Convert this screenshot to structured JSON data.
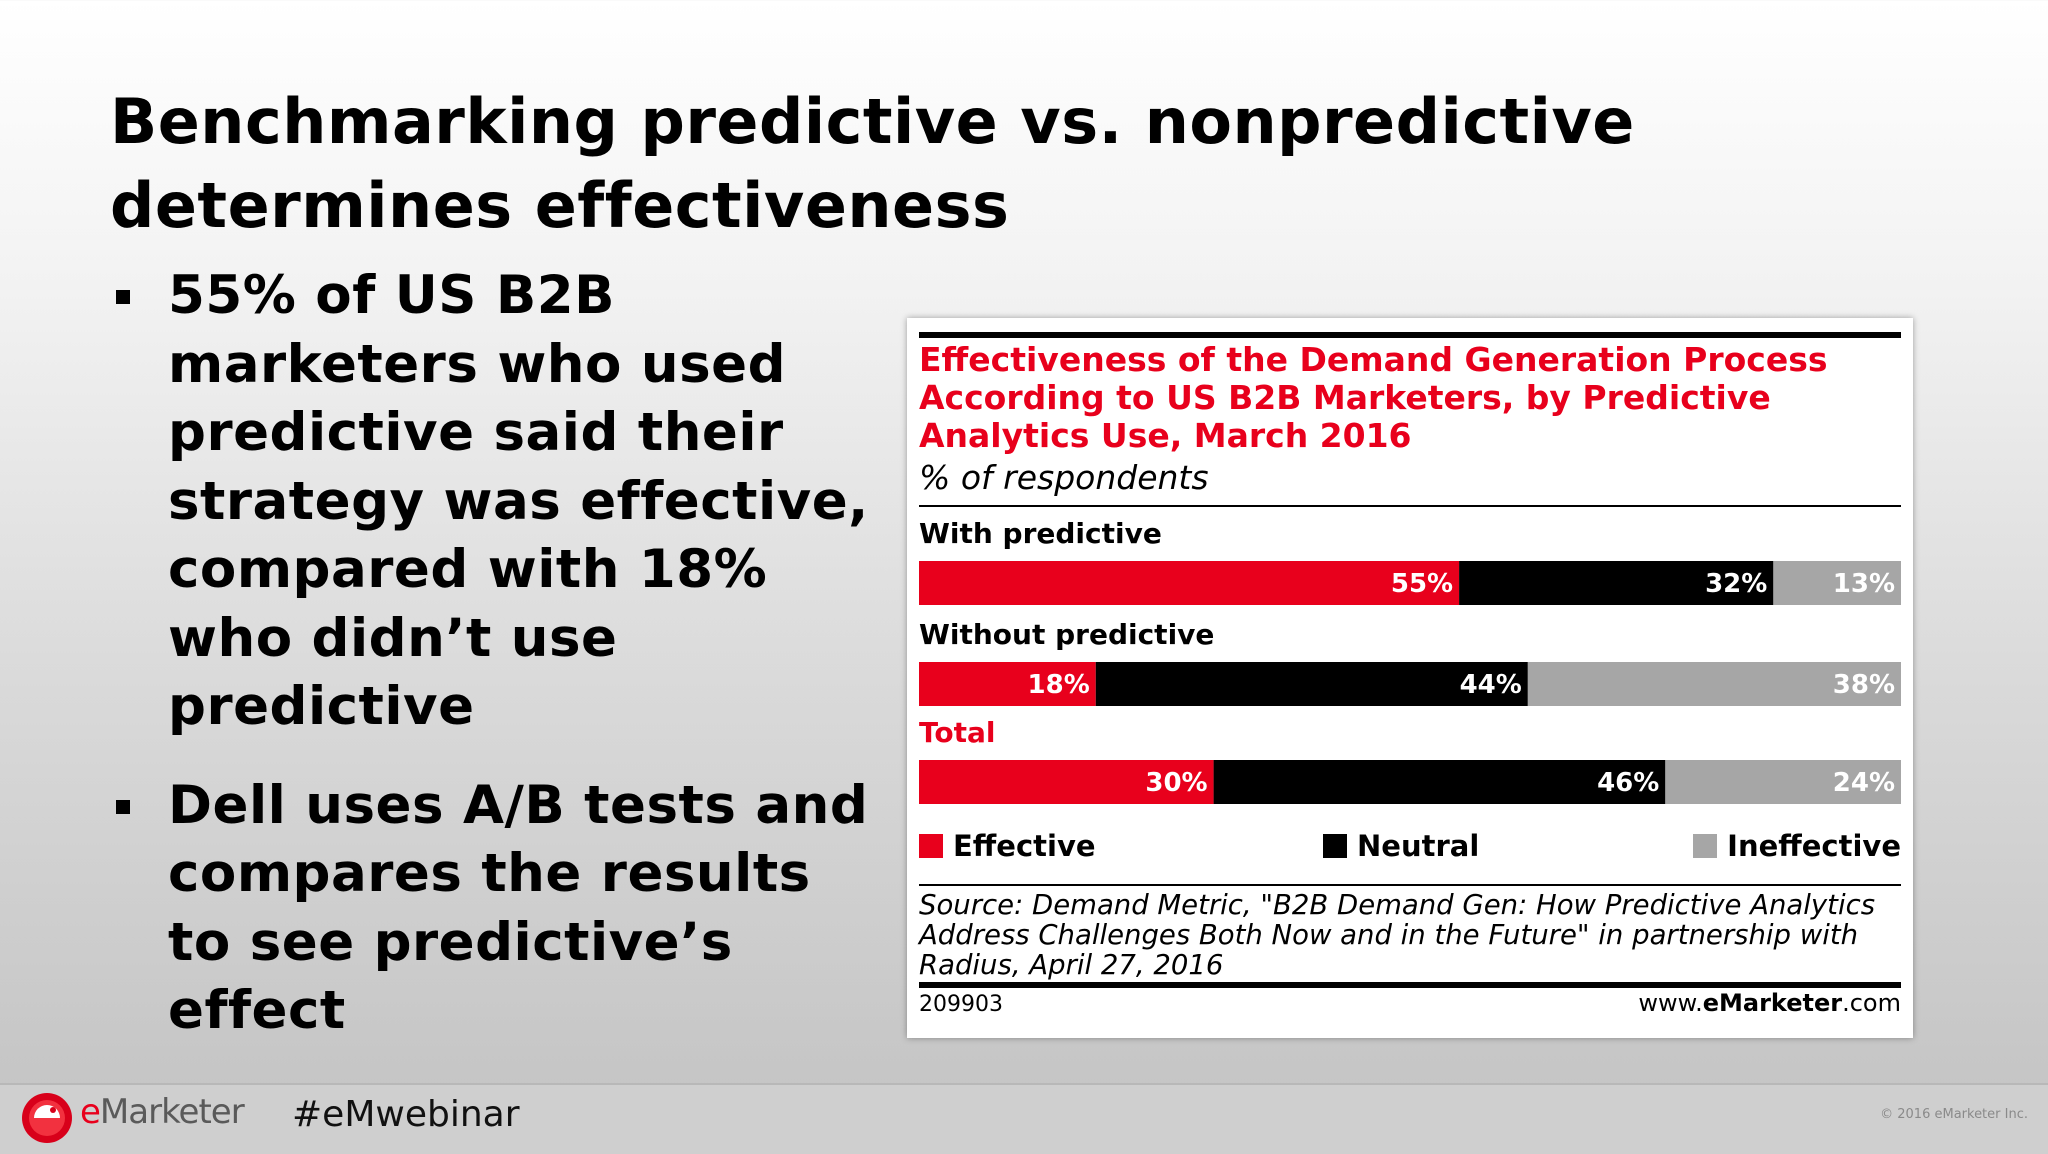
{
  "slide": {
    "title_line1": "Benchmarking predictive vs. nonpredictive",
    "title_line2": "determines effectiveness",
    "bullets": [
      "55% of US B2B marketers who used predictive said their strategy was effective, compared with 18% who didn’t use predictive",
      "Dell uses A/B tests and compares the results to see predictive’s effect"
    ]
  },
  "chart_data": {
    "type": "bar",
    "orientation": "horizontal",
    "stacked": true,
    "title": "Effectiveness of the Demand Generation Process According to US B2B Marketers, by Predictive Analytics Use, March 2016",
    "subtitle": "% of respondents",
    "categories": [
      "With predictive",
      "Without predictive",
      "Total"
    ],
    "series": [
      {
        "name": "Effective",
        "color": "#e8001c",
        "values": [
          55,
          18,
          30
        ]
      },
      {
        "name": "Neutral",
        "color": "#000000",
        "values": [
          32,
          44,
          46
        ]
      },
      {
        "name": "Ineffective",
        "color": "#a6a6a6",
        "values": [
          13,
          38,
          24
        ]
      }
    ],
    "value_suffix": "%",
    "xlim": [
      0,
      100
    ],
    "legend_position": "bottom",
    "grid": false,
    "source": "Source: Demand Metric, \"B2B Demand Gen: How Predictive Analytics Address Challenges Both Now and in the Future\" in partnership with Radius, April 27, 2016",
    "chart_id": "209903",
    "brand_pre": "www.",
    "brand_bold": "eMarketer",
    "brand_post": ".com"
  },
  "footer": {
    "logo_e": "e",
    "logo_rest": "Marketer",
    "hashtag": "#eMwebinar",
    "copyright": "© 2016 eMarketer Inc."
  },
  "colors": {
    "accent_red": "#e8001c",
    "neutral_black": "#000000",
    "ineffective_gray": "#a6a6a6"
  }
}
